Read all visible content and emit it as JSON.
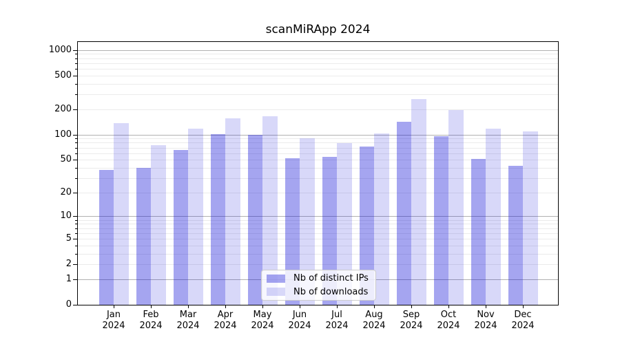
{
  "title": "scanMiRApp 2024",
  "chart_data": {
    "type": "bar",
    "title": "scanMiRApp 2024",
    "categories": [
      "Jan",
      "Feb",
      "Mar",
      "Apr",
      "May",
      "Jun",
      "Jul",
      "Aug",
      "Sep",
      "Oct",
      "Nov",
      "Dec"
    ],
    "x_sublabel": "2024",
    "series": [
      {
        "name": "Nb of distinct IPs",
        "values": [
          38,
          40,
          65,
          102,
          99,
          52,
          54,
          72,
          141,
          96,
          51,
          42
        ]
      },
      {
        "name": "Nb of downloads",
        "values": [
          138,
          75,
          118,
          155,
          166,
          91,
          80,
          104,
          262,
          197,
          118,
          110
        ]
      }
    ],
    "yscale": "log1p",
    "ylabel": "",
    "xlabel": "",
    "y_ticks": [
      0,
      1,
      2,
      5,
      10,
      20,
      50,
      100,
      200,
      500,
      1000
    ],
    "ylim": [
      0,
      1245
    ],
    "grid": {
      "horizontal": true,
      "major_at": [
        1,
        10,
        100,
        1000
      ],
      "minor_subs": [
        2,
        3,
        4,
        5,
        6,
        7,
        8,
        9
      ]
    },
    "legend_position": "lower center"
  },
  "legend": {
    "items": [
      {
        "label": "Nb of distinct IPs",
        "swatch": "bar_distinct_ips"
      },
      {
        "label": "Nb of downloads",
        "swatch": "bar_downloads"
      }
    ]
  },
  "colors": {
    "bar_distinct_ips": "rgba(10,10,215,0.37)",
    "bar_downloads": "rgba(10,10,215,0.16)",
    "grid_major": "#b0b0b0",
    "grid_minor": "#ebebeb",
    "spine": "#000000",
    "text": "#000000"
  }
}
